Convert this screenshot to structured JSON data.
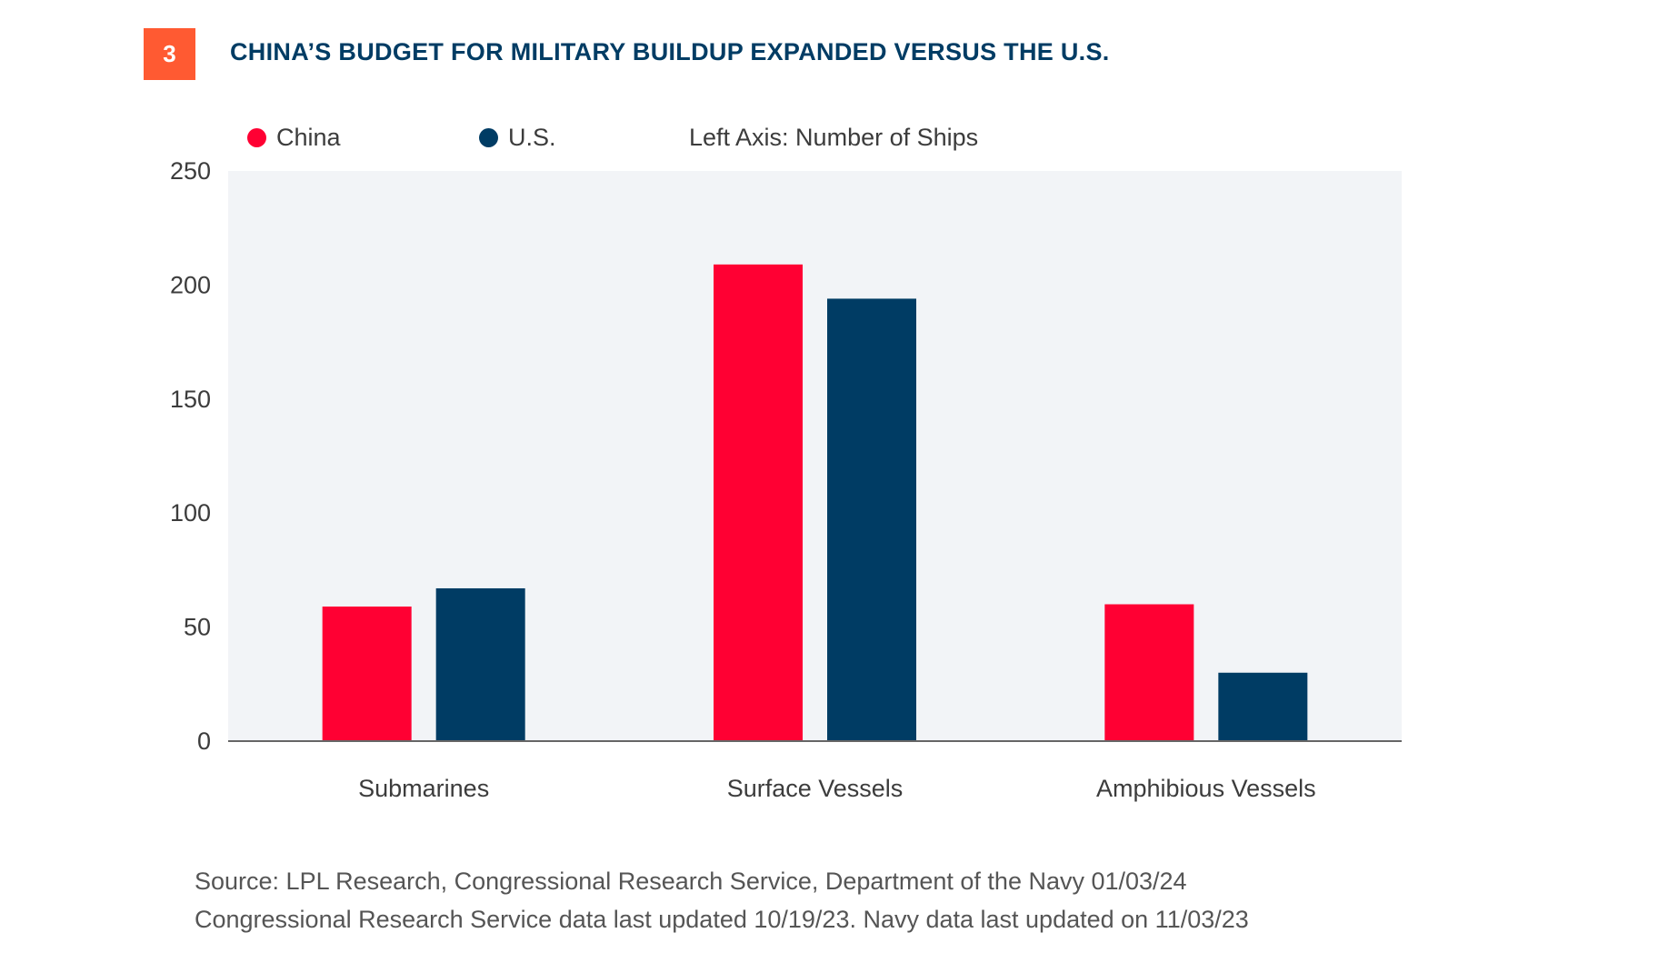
{
  "header": {
    "badge_number": "3",
    "badge_color": "#ff5a32",
    "title": "CHINA’S BUDGET FOR MILITARY BUILDUP EXPANDED VERSUS THE U.S."
  },
  "legend": {
    "axis_note": "Left Axis: Number of Ships"
  },
  "chart_data": {
    "type": "bar",
    "categories": [
      "Submarines",
      "Surface Vessels",
      "Amphibious Vessels"
    ],
    "series": [
      {
        "name": "China",
        "color": "#ff0033",
        "values": [
          59,
          209,
          60
        ]
      },
      {
        "name": "U.S.",
        "color": "#003c64",
        "values": [
          67,
          194,
          30
        ]
      }
    ],
    "ylim": [
      0,
      250
    ],
    "yticks": [
      0,
      50,
      100,
      150,
      200,
      250
    ],
    "grid": false,
    "plot_background": "#f2f4f7",
    "legend_position": "top-left"
  },
  "source": {
    "line1": "Source: LPL Research, Congressional Research Service, Department of the Navy 01/03/24",
    "line2": "Congressional Research Service data last updated 10/19/23. Navy data last updated on 11/03/23"
  }
}
